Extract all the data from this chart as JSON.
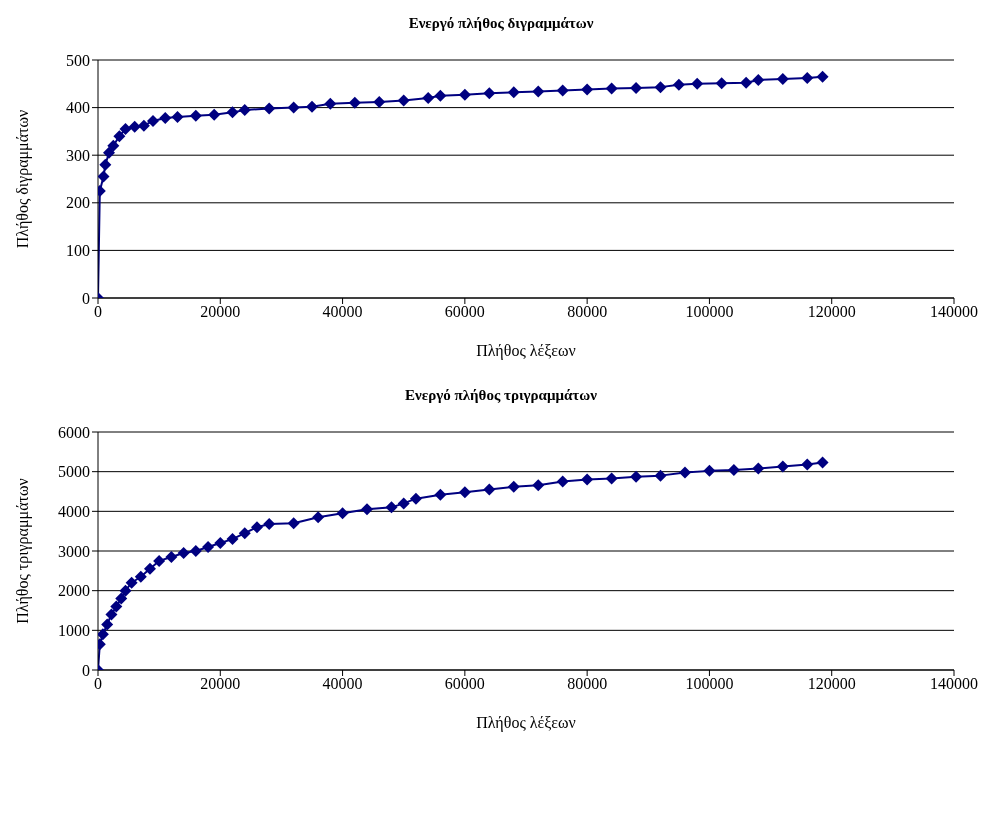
{
  "chart_data": [
    {
      "type": "line",
      "title": "Ενεργό πλήθος διγραμμάτων",
      "xlabel": "Πλήθος λέξεων",
      "ylabel": "Πλήθος διγραμμάτων",
      "xlim": [
        0,
        140000
      ],
      "xticks": [
        0,
        20000,
        40000,
        60000,
        80000,
        100000,
        120000,
        140000
      ],
      "ylim": [
        0,
        500
      ],
      "yticks": [
        0,
        100,
        200,
        300,
        400,
        500
      ],
      "grid": "y",
      "legend": false,
      "marker": "diamond",
      "line_style": "solid",
      "series": [
        {
          "color": "#000080",
          "x": [
            0,
            300,
            900,
            1200,
            1800,
            2500,
            3500,
            4500,
            6000,
            7500,
            9000,
            11000,
            13000,
            16000,
            19000,
            22000,
            24000,
            28000,
            32000,
            35000,
            38000,
            42000,
            46000,
            50000,
            54000,
            56000,
            60000,
            64000,
            68000,
            72000,
            76000,
            80000,
            84000,
            88000,
            92000,
            95000,
            98000,
            102000,
            106000,
            108000,
            112000,
            116000,
            118500
          ],
          "values": [
            0,
            225,
            255,
            280,
            305,
            320,
            340,
            355,
            360,
            362,
            372,
            378,
            380,
            383,
            385,
            390,
            395,
            398,
            400,
            402,
            408,
            410,
            412,
            415,
            420,
            425,
            427,
            430,
            432,
            434,
            436,
            438,
            440,
            441,
            443,
            448,
            450,
            451,
            452,
            458,
            460,
            462,
            465
          ]
        }
      ]
    },
    {
      "type": "line",
      "title": "Ενεργό πλήθος τριγραμμάτων",
      "xlabel": "Πλήθος λέξεων",
      "ylabel": "Πλήθος τριγραμμάτων",
      "xlim": [
        0,
        140000
      ],
      "xticks": [
        0,
        20000,
        40000,
        60000,
        80000,
        100000,
        120000,
        140000
      ],
      "ylim": [
        0,
        6000
      ],
      "yticks": [
        0,
        1000,
        2000,
        3000,
        4000,
        5000,
        6000
      ],
      "grid": "y",
      "legend": false,
      "marker": "diamond",
      "line_style": "solid",
      "series": [
        {
          "color": "#000080",
          "x": [
            0,
            300,
            800,
            1500,
            2200,
            3000,
            3800,
            4500,
            5500,
            7000,
            8500,
            10000,
            12000,
            14000,
            16000,
            18000,
            20000,
            22000,
            24000,
            26000,
            28000,
            32000,
            36000,
            40000,
            44000,
            48000,
            50000,
            52000,
            56000,
            60000,
            64000,
            68000,
            72000,
            76000,
            80000,
            84000,
            88000,
            92000,
            96000,
            100000,
            104000,
            108000,
            112000,
            116000,
            118500
          ],
          "values": [
            0,
            650,
            900,
            1150,
            1400,
            1600,
            1800,
            2000,
            2200,
            2350,
            2550,
            2750,
            2850,
            2950,
            3000,
            3100,
            3200,
            3300,
            3450,
            3600,
            3680,
            3700,
            3850,
            3950,
            4050,
            4100,
            4200,
            4320,
            4420,
            4480,
            4550,
            4620,
            4660,
            4750,
            4800,
            4830,
            4870,
            4900,
            4980,
            5020,
            5040,
            5080,
            5130,
            5180,
            5230
          ]
        }
      ]
    }
  ]
}
